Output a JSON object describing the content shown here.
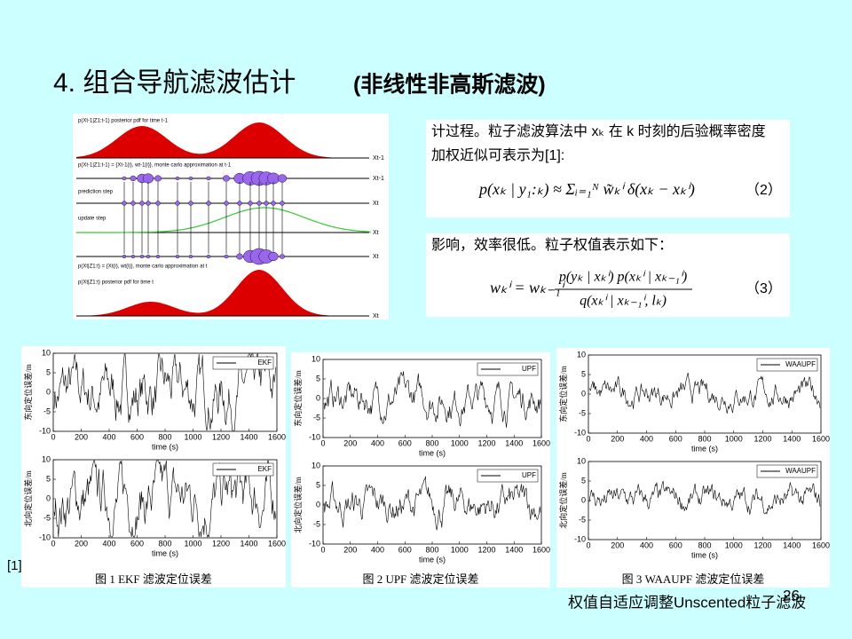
{
  "header": {
    "title": "4. 组合导航滤波估计",
    "subtitle": "(非线性非高斯滤波)"
  },
  "diagram": {
    "labels": [
      "p(Xt-1|Z1:t-1) posterior pdf for time t-1",
      "p(Xt-1|Z1:t-1) = {Xt-1(i), wt-1(i)}, monte carlo approximation at t-1",
      "prediction step",
      "update step",
      "p(Xt|Z1:t) = {Xt(i), wt(i)}, monte carlo approximation at t",
      "p(Xt|Z1:t) posterior pdf for time t"
    ],
    "axis_labels": [
      "Xt-1",
      "Xt-1",
      "Xt",
      "Xt",
      "Xt",
      "Xt"
    ]
  },
  "text_boxes": [
    {
      "lines": [
        "计过程。粒子滤波算法中 xₖ 在 k 时刻的后验概率密度",
        "加权近似可表示为[1]:"
      ],
      "formula": "p(xₖ | y₁:ₖ) ≈ Σᵢ₌₁ᴺ w̃ₖⁱ δ(xₖ − xₖⁱ)",
      "number": "（2）"
    },
    {
      "lines": [
        "影响，效率很低。粒子权值表示如下："
      ],
      "formula_lhs": "wₖⁱ = wₖ₋₁ⁱ",
      "numerator": "p(yₖ | xₖⁱ) p(xₖⁱ | xₖ₋₁ⁱ)",
      "denominator": "q(xₖⁱ | xₖ₋₁ⁱ, lₖ)",
      "number": "（3）"
    }
  ],
  "figures": {
    "xlabel": "time (s)",
    "ylabels": [
      "东向定位误差/m",
      "北向定位误差/m"
    ],
    "xticks": [
      0,
      200,
      400,
      600,
      800,
      1000,
      1200,
      1400,
      1600
    ],
    "yticks": [
      -10,
      -5,
      0,
      5,
      10
    ],
    "panels": [
      {
        "legend": "EKF",
        "caption": "图 1   EKF 滤波定位误差"
      },
      {
        "legend": "UPF",
        "caption": "图 2   UPF 滤波定位误差"
      },
      {
        "legend": "WAAUPF",
        "caption": "图 3   WAAUPF 滤波定位误差"
      }
    ]
  },
  "footer": {
    "reference": "[1]",
    "page_number": "26",
    "note": "权值自适应调整Unscented粒子滤波"
  }
}
